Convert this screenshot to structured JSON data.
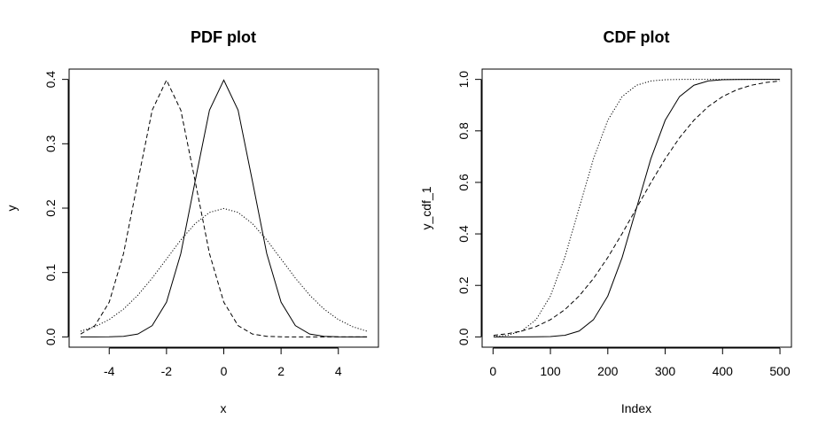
{
  "chart_data": [
    {
      "type": "line",
      "title": "PDF plot",
      "xlabel": "x",
      "ylabel": "y",
      "xlim": [
        -5.4,
        5.4
      ],
      "ylim": [
        -0.016,
        0.416
      ],
      "xticks": [
        -4,
        -2,
        0,
        2,
        4
      ],
      "xtick_labels": [
        "-4",
        "-2",
        "0",
        "2",
        "4"
      ],
      "yticks": [
        0.0,
        0.1,
        0.2,
        0.3,
        0.4
      ],
      "ytick_labels": [
        "0.0",
        "0.1",
        "0.2",
        "0.3",
        "0.4"
      ],
      "grid": false,
      "series": [
        {
          "style": "solid",
          "x": [
            -5,
            -4.5,
            -4,
            -3.5,
            -3,
            -2.5,
            -2,
            -1.5,
            -1,
            -0.5,
            0,
            0.5,
            1,
            1.5,
            2,
            2.5,
            3,
            3.5,
            4,
            4.5,
            5
          ],
          "y": [
            0.0,
            0.0,
            0.0001,
            0.0009,
            0.0044,
            0.0175,
            0.054,
            0.1295,
            0.242,
            0.3521,
            0.3989,
            0.3521,
            0.242,
            0.1295,
            0.054,
            0.0175,
            0.0044,
            0.0009,
            0.0001,
            0.0,
            0.0
          ]
        },
        {
          "style": "dashed",
          "x": [
            -5,
            -4.5,
            -4,
            -3.5,
            -3,
            -2.5,
            -2,
            -1.5,
            -1,
            -0.5,
            0,
            0.5,
            1,
            1.5,
            2,
            2.5,
            3,
            3.5,
            4,
            4.5,
            5
          ],
          "y": [
            0.0044,
            0.0175,
            0.054,
            0.1295,
            0.242,
            0.3521,
            0.3989,
            0.3521,
            0.242,
            0.1295,
            0.054,
            0.0175,
            0.0044,
            0.0009,
            0.0001,
            0.0,
            0.0,
            0.0,
            0.0,
            0.0,
            0.0
          ]
        },
        {
          "style": "dotted",
          "x": [
            -5,
            -4.5,
            -4,
            -3.5,
            -3,
            -2.5,
            -2,
            -1.5,
            -1,
            -0.5,
            0,
            0.5,
            1,
            1.5,
            2,
            2.5,
            3,
            3.5,
            4,
            4.5,
            5
          ],
          "y": [
            0.0088,
            0.0158,
            0.027,
            0.0431,
            0.0648,
            0.0913,
            0.121,
            0.1506,
            0.176,
            0.1933,
            0.1995,
            0.1933,
            0.176,
            0.1506,
            0.121,
            0.0913,
            0.0648,
            0.0431,
            0.027,
            0.0158,
            0.0088
          ]
        }
      ]
    },
    {
      "type": "line",
      "title": "CDF plot",
      "xlabel": "Index",
      "ylabel": "y_cdf_1",
      "xlim": [
        -19,
        520
      ],
      "ylim": [
        -0.04,
        1.04
      ],
      "xticks": [
        0,
        100,
        200,
        300,
        400,
        500
      ],
      "xtick_labels": [
        "0",
        "100",
        "200",
        "300",
        "400",
        "500"
      ],
      "yticks": [
        0.0,
        0.2,
        0.4,
        0.6,
        0.8,
        1.0
      ],
      "ytick_labels": [
        "0.0",
        "0.2",
        "0.4",
        "0.6",
        "0.8",
        "1.0"
      ],
      "grid": false,
      "series": [
        {
          "style": "solid",
          "x": [
            1,
            25,
            50,
            75,
            100,
            125,
            150,
            175,
            200,
            225,
            250,
            275,
            300,
            325,
            350,
            375,
            400,
            425,
            450,
            475,
            500
          ],
          "y": [
            0.0,
            0.0,
            0.0,
            0.0002,
            0.0013,
            0.0062,
            0.0228,
            0.0668,
            0.1587,
            0.3085,
            0.5,
            0.6915,
            0.8413,
            0.9332,
            0.9772,
            0.9938,
            0.9987,
            0.9998,
            1.0,
            1.0,
            1.0
          ]
        },
        {
          "style": "dashed",
          "x": [
            1,
            25,
            50,
            75,
            100,
            125,
            150,
            175,
            200,
            225,
            250,
            275,
            300,
            325,
            350,
            375,
            400,
            425,
            450,
            475,
            500
          ],
          "y": [
            0.0062,
            0.0122,
            0.0228,
            0.0401,
            0.0668,
            0.1056,
            0.1587,
            0.2266,
            0.3085,
            0.4013,
            0.5,
            0.5987,
            0.6915,
            0.7734,
            0.8413,
            0.8944,
            0.9332,
            0.9599,
            0.9772,
            0.9878,
            0.9938
          ]
        },
        {
          "style": "dotted",
          "x": [
            1,
            25,
            50,
            75,
            100,
            125,
            150,
            175,
            200,
            225,
            250,
            275,
            300,
            325,
            350,
            375,
            400,
            425,
            450,
            475,
            500
          ],
          "y": [
            0.0013,
            0.0062,
            0.0228,
            0.0668,
            0.1587,
            0.3085,
            0.5,
            0.6915,
            0.8413,
            0.9332,
            0.9772,
            0.9938,
            0.9987,
            0.9998,
            1.0,
            1.0,
            1.0,
            1.0,
            1.0,
            1.0,
            1.0
          ]
        }
      ]
    }
  ]
}
